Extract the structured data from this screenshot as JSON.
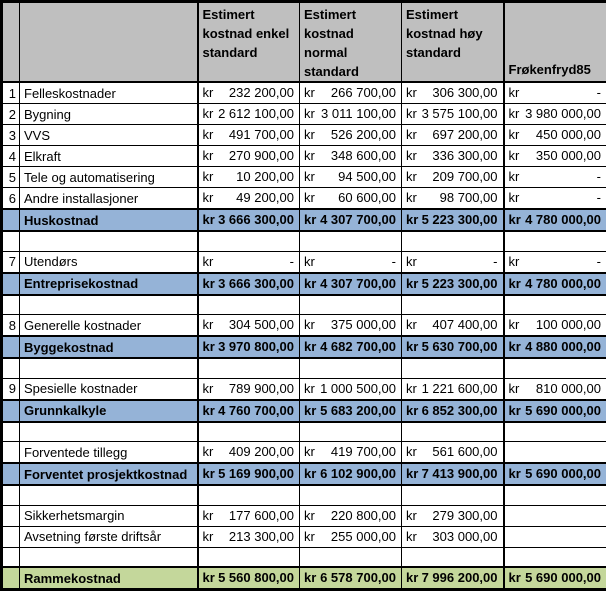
{
  "sheet": {
    "currency": "kr",
    "dash": "-",
    "columns": {
      "num_header": "",
      "label_header": "",
      "cost_headers": [
        "Estimert\nkostnad enkel\nstandard",
        "Estimert\nkostnad normal\nstandard",
        "Estimert\nkostnad høy\nstandard"
      ],
      "last_header": "Frøkenfryd85"
    },
    "rows": [
      {
        "num": "1",
        "label": "Felleskostnader",
        "style": "data",
        "cells": [
          "232 200,00",
          "266 700,00",
          "306 300,00",
          "-"
        ]
      },
      {
        "num": "2",
        "label": "Bygning",
        "style": "data",
        "cells": [
          "2 612 100,00",
          "3 011 100,00",
          "3 575 100,00",
          "3 980 000,00"
        ]
      },
      {
        "num": "3",
        "label": "VVS",
        "style": "data",
        "cells": [
          "491 700,00",
          "526 200,00",
          "697 200,00",
          "450 000,00"
        ]
      },
      {
        "num": "4",
        "label": "Elkraft",
        "style": "data",
        "cells": [
          "270 900,00",
          "348 600,00",
          "336 300,00",
          "350 000,00"
        ]
      },
      {
        "num": "5",
        "label": "Tele og automatisering",
        "style": "data",
        "cells": [
          "10 200,00",
          "94 500,00",
          "209 700,00",
          "-"
        ]
      },
      {
        "num": "6",
        "label": "Andre installasjoner",
        "style": "data",
        "cells": [
          "49 200,00",
          "60 600,00",
          "98 700,00",
          "-"
        ]
      },
      {
        "num": "",
        "label": "Huskostnad",
        "style": "total",
        "cells": [
          "3 666 300,00",
          "4 307 700,00",
          "5 223 300,00",
          "4 780 000,00"
        ]
      },
      {
        "num": "",
        "label": "",
        "style": "spacer",
        "cells": [
          null,
          null,
          null,
          null
        ]
      },
      {
        "num": "7",
        "label": "Utendørs",
        "style": "data",
        "cells": [
          "-",
          "-",
          "-",
          "-"
        ]
      },
      {
        "num": "",
        "label": "Entreprisekostnad",
        "style": "total",
        "cells": [
          "3 666 300,00",
          "4 307 700,00",
          "5 223 300,00",
          "4 780 000,00"
        ]
      },
      {
        "num": "",
        "label": "",
        "style": "spacer",
        "cells": [
          null,
          null,
          null,
          null
        ]
      },
      {
        "num": "8",
        "label": "Generelle kostnader",
        "style": "data",
        "cells": [
          "304 500,00",
          "375 000,00",
          "407 400,00",
          "100 000,00"
        ]
      },
      {
        "num": "",
        "label": "Byggekostnad",
        "style": "total",
        "cells": [
          "3 970 800,00",
          "4 682 700,00",
          "5 630 700,00",
          "4 880 000,00"
        ]
      },
      {
        "num": "",
        "label": "",
        "style": "spacer",
        "cells": [
          null,
          null,
          null,
          null
        ]
      },
      {
        "num": "9",
        "label": "Spesielle kostnader",
        "style": "data",
        "cells": [
          "789 900,00",
          "1 000 500,00",
          "1 221 600,00",
          "810 000,00"
        ]
      },
      {
        "num": "",
        "label": "Grunnkalkyle",
        "style": "total",
        "cells": [
          "4 760 700,00",
          "5 683 200,00",
          "6 852 300,00",
          "5 690 000,00"
        ]
      },
      {
        "num": "",
        "label": "",
        "style": "spacer",
        "cells": [
          null,
          null,
          null,
          null
        ]
      },
      {
        "num": "",
        "label": "Forventede tillegg",
        "style": "data",
        "cells": [
          "409 200,00",
          "419 700,00",
          "561 600,00",
          null
        ]
      },
      {
        "num": "",
        "label": "Forventet prosjektkostnad",
        "style": "total",
        "cells": [
          "5 169 900,00",
          "6 102 900,00",
          "7 413 900,00",
          "5 690 000,00"
        ]
      },
      {
        "num": "",
        "label": "",
        "style": "spacer",
        "cells": [
          null,
          null,
          null,
          null
        ]
      },
      {
        "num": "",
        "label": "Sikkerhetsmargin",
        "style": "data",
        "cells": [
          "177 600,00",
          "220 800,00",
          "279 300,00",
          null
        ]
      },
      {
        "num": "",
        "label": "Avsetning første driftsår",
        "style": "data",
        "cells": [
          "213 300,00",
          "255 000,00",
          "303 000,00",
          null
        ]
      },
      {
        "num": "",
        "label": "",
        "style": "spacer",
        "cells": [
          null,
          null,
          null,
          null
        ]
      },
      {
        "num": "",
        "label": "Rammekostnad",
        "style": "final",
        "cells": [
          "5 560 800,00",
          "6 578 700,00",
          "7 996 200,00",
          "5 690 000,00"
        ]
      }
    ]
  },
  "colors": {
    "header_bg": "#bfbfbf",
    "total_row_bg": "#95b3d7",
    "final_row_bg": "#c4d79b",
    "grid_line": "#000000"
  }
}
